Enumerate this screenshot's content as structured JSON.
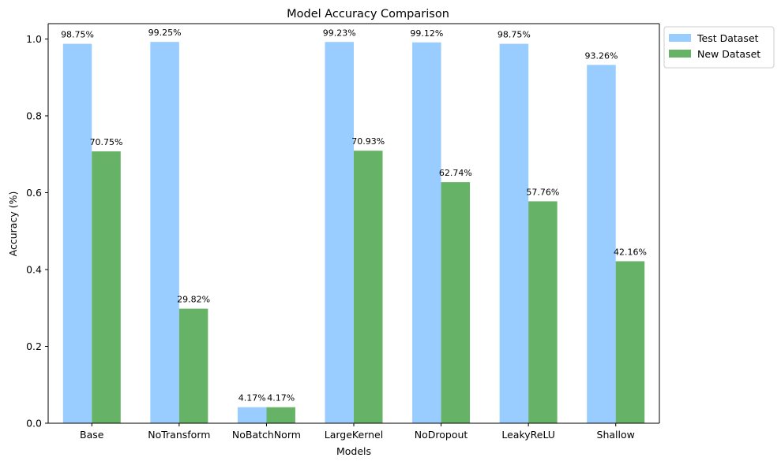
{
  "chart_data": {
    "type": "bar",
    "title": "Model Accuracy Comparison",
    "xlabel": "Models",
    "ylabel": "Accuracy (%)",
    "categories": [
      "Base",
      "NoTransform",
      "NoBatchNorm",
      "LargeKernel",
      "NoDropout",
      "LeakyReLU",
      "Shallow"
    ],
    "series": [
      {
        "name": "Test Dataset",
        "color": "#99ccff",
        "values": [
          0.9875,
          0.9925,
          0.0417,
          0.9923,
          0.9912,
          0.9875,
          0.9326
        ],
        "labels": [
          "98.75%",
          "99.25%",
          "4.17%",
          "99.23%",
          "99.12%",
          "98.75%",
          "93.26%"
        ]
      },
      {
        "name": "New Dataset",
        "color": "#66b266",
        "values": [
          0.7075,
          0.2982,
          0.0417,
          0.7093,
          0.6274,
          0.5776,
          0.4216
        ],
        "labels": [
          "70.75%",
          "29.82%",
          "4.17%",
          "70.93%",
          "62.74%",
          "57.76%",
          "42.16%"
        ]
      }
    ],
    "ylim": [
      0,
      1.04
    ],
    "yticks": [
      "0.0",
      "0.2",
      "0.4",
      "0.6",
      "0.8",
      "1.0"
    ],
    "grid": false,
    "legend_position": "outside-top-right"
  }
}
